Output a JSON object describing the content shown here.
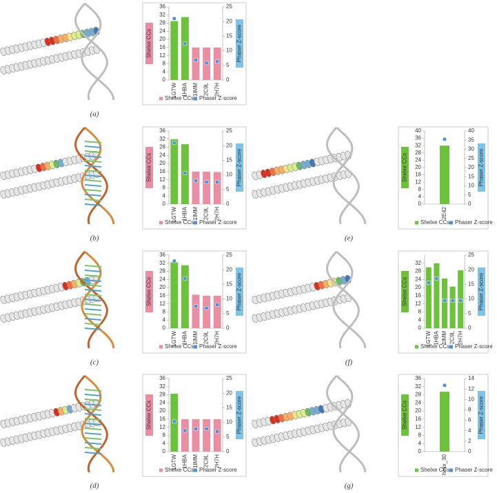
{
  "chart_data": [
    {
      "type": "bar",
      "label": "(a)",
      "ylabel": "Shelxe CCs",
      "y2label": "Phaser Z-score",
      "categories": [
        "1GTW",
        "1HBA",
        "1IMM",
        "2C9L",
        "2H7H"
      ],
      "series": [
        {
          "name": "Shelxe CCs",
          "color": "#e98ea3",
          "colors": [
            "#6cc23a",
            "#6cc23a",
            "#e98ea3",
            "#e98ea3",
            "#e98ea3"
          ],
          "values": [
            29,
            31,
            16,
            16,
            16
          ]
        },
        {
          "name": "Phaser Z-score",
          "color": "#4f8fd6",
          "axis": "y2",
          "values": [
            21,
            12.4,
            6.8,
            5.8,
            6.3
          ]
        }
      ],
      "ylim": [
        0,
        36
      ],
      "yticks": [
        0,
        4,
        8,
        12,
        16,
        20,
        24,
        28,
        32,
        36
      ],
      "y2lim": [
        0,
        25
      ],
      "y2ticks": [
        0,
        5,
        10,
        15,
        20,
        25
      ]
    },
    {
      "type": "bar",
      "label": "(b)",
      "ylabel": "Shelxe CCs",
      "y2label": "Phaser Z-score",
      "categories": [
        "1GTW",
        "1HBA",
        "1IMM",
        "2C9L",
        "2H7H"
      ],
      "series": [
        {
          "name": "Shelxe CCs",
          "color": "#e98ea3",
          "colors": [
            "#6cc23a",
            "#6cc23a",
            "#e98ea3",
            "#e98ea3",
            "#e98ea3"
          ],
          "values": [
            32,
            29.5,
            16,
            16,
            15.8
          ]
        },
        {
          "name": "Phaser Z-score",
          "color": "#4f8fd6",
          "axis": "y2",
          "values": [
            21,
            10.6,
            8,
            7.5,
            7.5
          ]
        }
      ],
      "ylim": [
        0,
        36
      ],
      "yticks": [
        0,
        4,
        8,
        12,
        16,
        20,
        24,
        28,
        32,
        36
      ],
      "y2lim": [
        0,
        25
      ],
      "y2ticks": [
        0,
        5,
        10,
        15,
        20,
        25
      ]
    },
    {
      "type": "bar",
      "label": "(c)",
      "ylabel": "Shelxe CCs",
      "y2label": "Phaser Z-score",
      "categories": [
        "1GTW",
        "1HBA",
        "1IMM",
        "2C9L",
        "2H7H"
      ],
      "series": [
        {
          "name": "Shelxe CCs",
          "color": "#e98ea3",
          "colors": [
            "#6cc23a",
            "#6cc23a",
            "#e98ea3",
            "#e98ea3",
            "#e98ea3"
          ],
          "values": [
            32.5,
            31,
            16.5,
            16,
            16
          ]
        },
        {
          "name": "Phaser Z-score",
          "color": "#4f8fd6",
          "axis": "y2",
          "values": [
            23,
            17,
            7.5,
            6.9,
            8
          ]
        }
      ],
      "ylim": [
        0,
        36
      ],
      "yticks": [
        0,
        4,
        8,
        12,
        16,
        20,
        24,
        28,
        32,
        36
      ],
      "y2lim": [
        0,
        25
      ],
      "y2ticks": [
        0,
        5,
        10,
        15,
        20,
        25
      ]
    },
    {
      "type": "bar",
      "label": "(d)",
      "ylabel": "Shelxe CCs",
      "y2label": "Phaser Z-score",
      "categories": [
        "1GTW",
        "1HBA",
        "1IMM",
        "2C9L",
        "2H7H"
      ],
      "series": [
        {
          "name": "Shelxe CCs",
          "color": "#e98ea3",
          "colors": [
            "#6cc23a",
            "#e98ea3",
            "#e98ea3",
            "#e98ea3",
            "#e98ea3"
          ],
          "values": [
            28.5,
            16,
            16,
            16,
            16
          ]
        },
        {
          "name": "Phaser Z-score",
          "color": "#4f8fd6",
          "axis": "y2",
          "values": [
            10.3,
            7.2,
            7.8,
            7.8,
            6.9
          ]
        }
      ],
      "ylim": [
        0,
        36
      ],
      "yticks": [
        0,
        4,
        8,
        12,
        16,
        20,
        24,
        28,
        32,
        36
      ],
      "y2lim": [
        0,
        25
      ],
      "y2ticks": [
        0,
        5,
        10,
        15,
        20,
        25
      ]
    },
    {
      "type": "bar",
      "label": "(e)",
      "ylabel": "Shelxe CCs",
      "y2label": "Phaser Z-score",
      "categories": [
        "2E42"
      ],
      "series": [
        {
          "name": "Shelxe CCs",
          "color": "#6cc23a",
          "colors": [
            "#6cc23a"
          ],
          "values": [
            32
          ]
        },
        {
          "name": "Phaser Z-score",
          "color": "#4f8fd6",
          "axis": "y2",
          "values": [
            35.5
          ]
        }
      ],
      "ylim": [
        0,
        40
      ],
      "yticks": [
        0,
        4,
        8,
        12,
        16,
        20,
        24,
        28,
        32,
        36,
        40
      ],
      "y2lim": [
        0,
        40
      ],
      "y2ticks": [
        0,
        5,
        10,
        15,
        20,
        25,
        30,
        35,
        40
      ]
    },
    {
      "type": "bar",
      "label": "(f)",
      "ylabel": "Shelxe CCs",
      "y2label": "Phaser Z-score",
      "categories": [
        "1GTW",
        "1HBA",
        "1IMM",
        "2C9L",
        "2H7H"
      ],
      "series": [
        {
          "name": "Shelxe CCs",
          "color": "#6cc23a",
          "colors": [
            "#6cc23a",
            "#6cc23a",
            "#6cc23a",
            "#6cc23a",
            "#6cc23a"
          ],
          "values": [
            30,
            32,
            24.5,
            20.5,
            28.5
          ]
        },
        {
          "name": "Phaser Z-score",
          "color": "#4f8fd6",
          "axis": "y2",
          "values": [
            15.5,
            17,
            9.5,
            9.5,
            9.5
          ]
        }
      ],
      "ylim": [
        0,
        36
      ],
      "yticks": [
        0,
        4,
        8,
        12,
        16,
        20,
        24,
        28,
        32
      ],
      "y2lim": [
        0,
        25
      ],
      "y2ticks": [
        0,
        5,
        10,
        15,
        20,
        25
      ]
    },
    {
      "type": "bar",
      "label": "(g)",
      "ylabel": "Shelxe CCs",
      "y2label": "Phaser Z-score",
      "categories": [
        "helix_30"
      ],
      "series": [
        {
          "name": "Shelxe CCs",
          "color": "#6cc23a",
          "colors": [
            "#6cc23a"
          ],
          "values": [
            29.5
          ]
        },
        {
          "name": "Phaser Z-score",
          "color": "#4f8fd6",
          "axis": "y2",
          "values": [
            12.7
          ]
        }
      ],
      "ylim": [
        0,
        36
      ],
      "yticks": [
        0,
        4,
        8,
        12,
        16,
        20,
        24,
        28,
        32,
        36
      ],
      "y2lim": [
        0,
        14
      ],
      "y2ticks": [
        0,
        2,
        4,
        6,
        8,
        10,
        12,
        14
      ]
    }
  ]
}
